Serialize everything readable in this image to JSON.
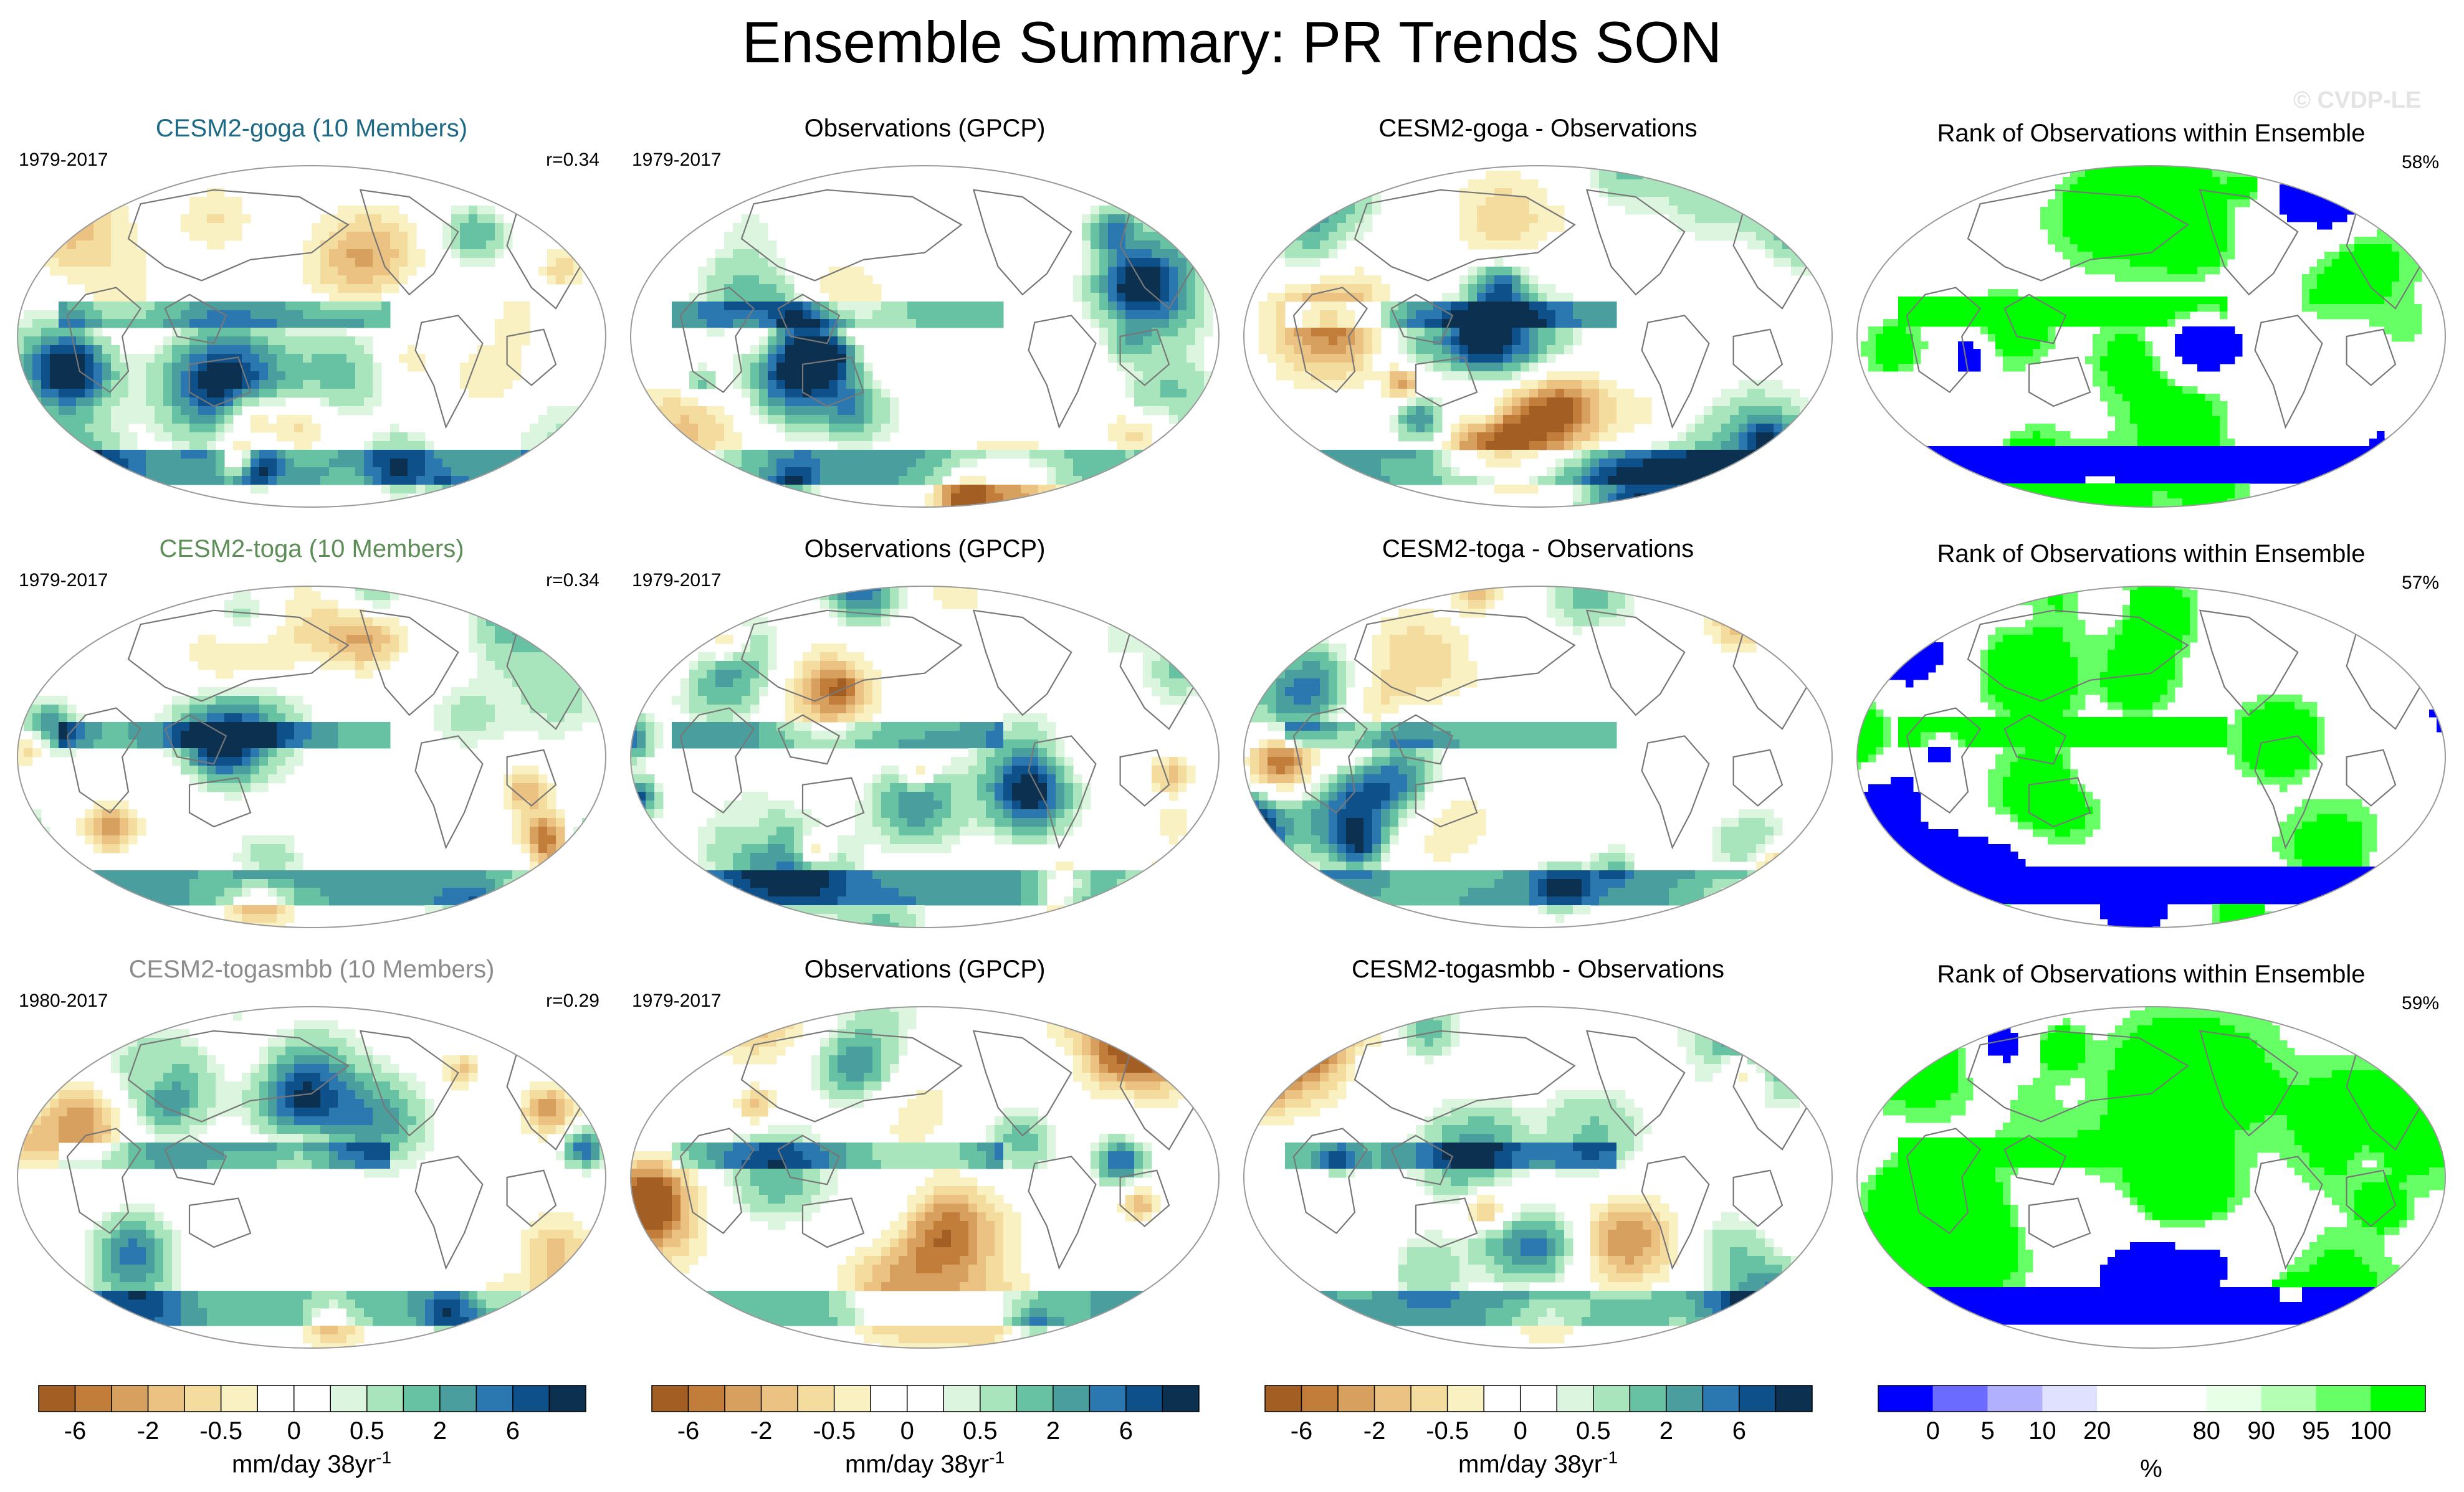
{
  "figure": {
    "title": "Ensemble Summary: PR Trends SON",
    "watermark": "© CVDP-LE"
  },
  "colors": {
    "diverging": [
      "#A35E24",
      "#C27D3A",
      "#D8A05E",
      "#EBC282",
      "#F4DB9E",
      "#FAF1C2",
      "#FFFFFF",
      "#FFFFFF",
      "#DCF5DF",
      "#A9E5BC",
      "#67C1A3",
      "#4A9F9E",
      "#2B78B0",
      "#0E518A",
      "#0B3050"
    ],
    "rank": [
      "#0000FF",
      "#6B6BFF",
      "#B0B0FF",
      "#E0E0FF",
      "#FFFFFF",
      "#FFFFFF",
      "#E6FFE6",
      "#B5FFB5",
      "#66FF66",
      "#00FF00"
    ]
  },
  "rows": [
    {
      "model": {
        "title": "CESM2-goga (10 Members)",
        "title_color": "#1E6A86",
        "period": "1979-2017",
        "corr": "r=0.34"
      },
      "obs": {
        "title": "Observations (GPCP)",
        "period": "1979-2017"
      },
      "diff": {
        "title": "CESM2-goga - Observations"
      },
      "rank": {
        "title": "Rank of Observations within Ensemble",
        "pct": "58%"
      }
    },
    {
      "model": {
        "title": "CESM2-toga (10 Members)",
        "title_color": "#5E8E58",
        "period": "1979-2017",
        "corr": "r=0.34"
      },
      "obs": {
        "title": "Observations (GPCP)",
        "period": "1979-2017"
      },
      "diff": {
        "title": "CESM2-toga - Observations"
      },
      "rank": {
        "title": "Rank of Observations within Ensemble",
        "pct": "57%"
      }
    },
    {
      "model": {
        "title": "CESM2-togasmbb (10 Members)",
        "title_color": "#8C8C8C",
        "period": "1980-2017",
        "corr": "r=0.29"
      },
      "obs": {
        "title": "Observations (GPCP)",
        "period": "1979-2017"
      },
      "diff": {
        "title": "CESM2-togasmbb - Observations"
      },
      "rank": {
        "title": "Rank of Observations within Ensemble",
        "pct": "59%"
      }
    }
  ],
  "colorbars": {
    "trend": {
      "tick_labels": [
        "-6",
        "-2",
        "-0.5",
        "0",
        "0.5",
        "2",
        "6"
      ],
      "unit": "mm/day 38yr",
      "unit_sup": "-1"
    },
    "rank": {
      "tick_labels": [
        "0",
        "5",
        "10",
        "20",
        "80",
        "90",
        "95",
        "100"
      ],
      "unit": "%"
    }
  },
  "chart_data": [
    {
      "type": "heatmap",
      "title": "CESM2-goga (10 Members)",
      "period": "1979-2017",
      "pattern_correlation": 0.34,
      "variable": "precipitation trend",
      "season": "SON",
      "units": "mm/day 38yr-1",
      "levels": [
        -6,
        -4,
        -2,
        -1,
        -0.5,
        -0.2,
        0,
        0.2,
        0.5,
        1,
        2,
        4,
        6
      ]
    },
    {
      "type": "heatmap",
      "title": "Observations (GPCP)",
      "period": "1979-2017",
      "units": "mm/day 38yr-1"
    },
    {
      "type": "heatmap",
      "title": "CESM2-goga - Observations",
      "units": "mm/day 38yr-1"
    },
    {
      "type": "heatmap",
      "title": "Rank of Observations within Ensemble",
      "percent_area": 58,
      "units": "%",
      "levels": [
        0,
        5,
        10,
        20,
        80,
        90,
        95,
        100
      ]
    },
    {
      "type": "heatmap",
      "title": "CESM2-toga (10 Members)",
      "period": "1979-2017",
      "pattern_correlation": 0.34,
      "units": "mm/day 38yr-1"
    },
    {
      "type": "heatmap",
      "title": "Observations (GPCP)",
      "period": "1979-2017",
      "units": "mm/day 38yr-1"
    },
    {
      "type": "heatmap",
      "title": "CESM2-toga - Observations",
      "units": "mm/day 38yr-1"
    },
    {
      "type": "heatmap",
      "title": "Rank of Observations within Ensemble",
      "percent_area": 57,
      "units": "%"
    },
    {
      "type": "heatmap",
      "title": "CESM2-togasmbb (10 Members)",
      "period": "1980-2017",
      "pattern_correlation": 0.29,
      "units": "mm/day 38yr-1"
    },
    {
      "type": "heatmap",
      "title": "Observations (GPCP)",
      "period": "1979-2017",
      "units": "mm/day 38yr-1"
    },
    {
      "type": "heatmap",
      "title": "CESM2-togasmbb - Observations",
      "units": "mm/day 38yr-1"
    },
    {
      "type": "heatmap",
      "title": "Rank of Observations within Ensemble",
      "percent_area": 59,
      "units": "%"
    }
  ]
}
